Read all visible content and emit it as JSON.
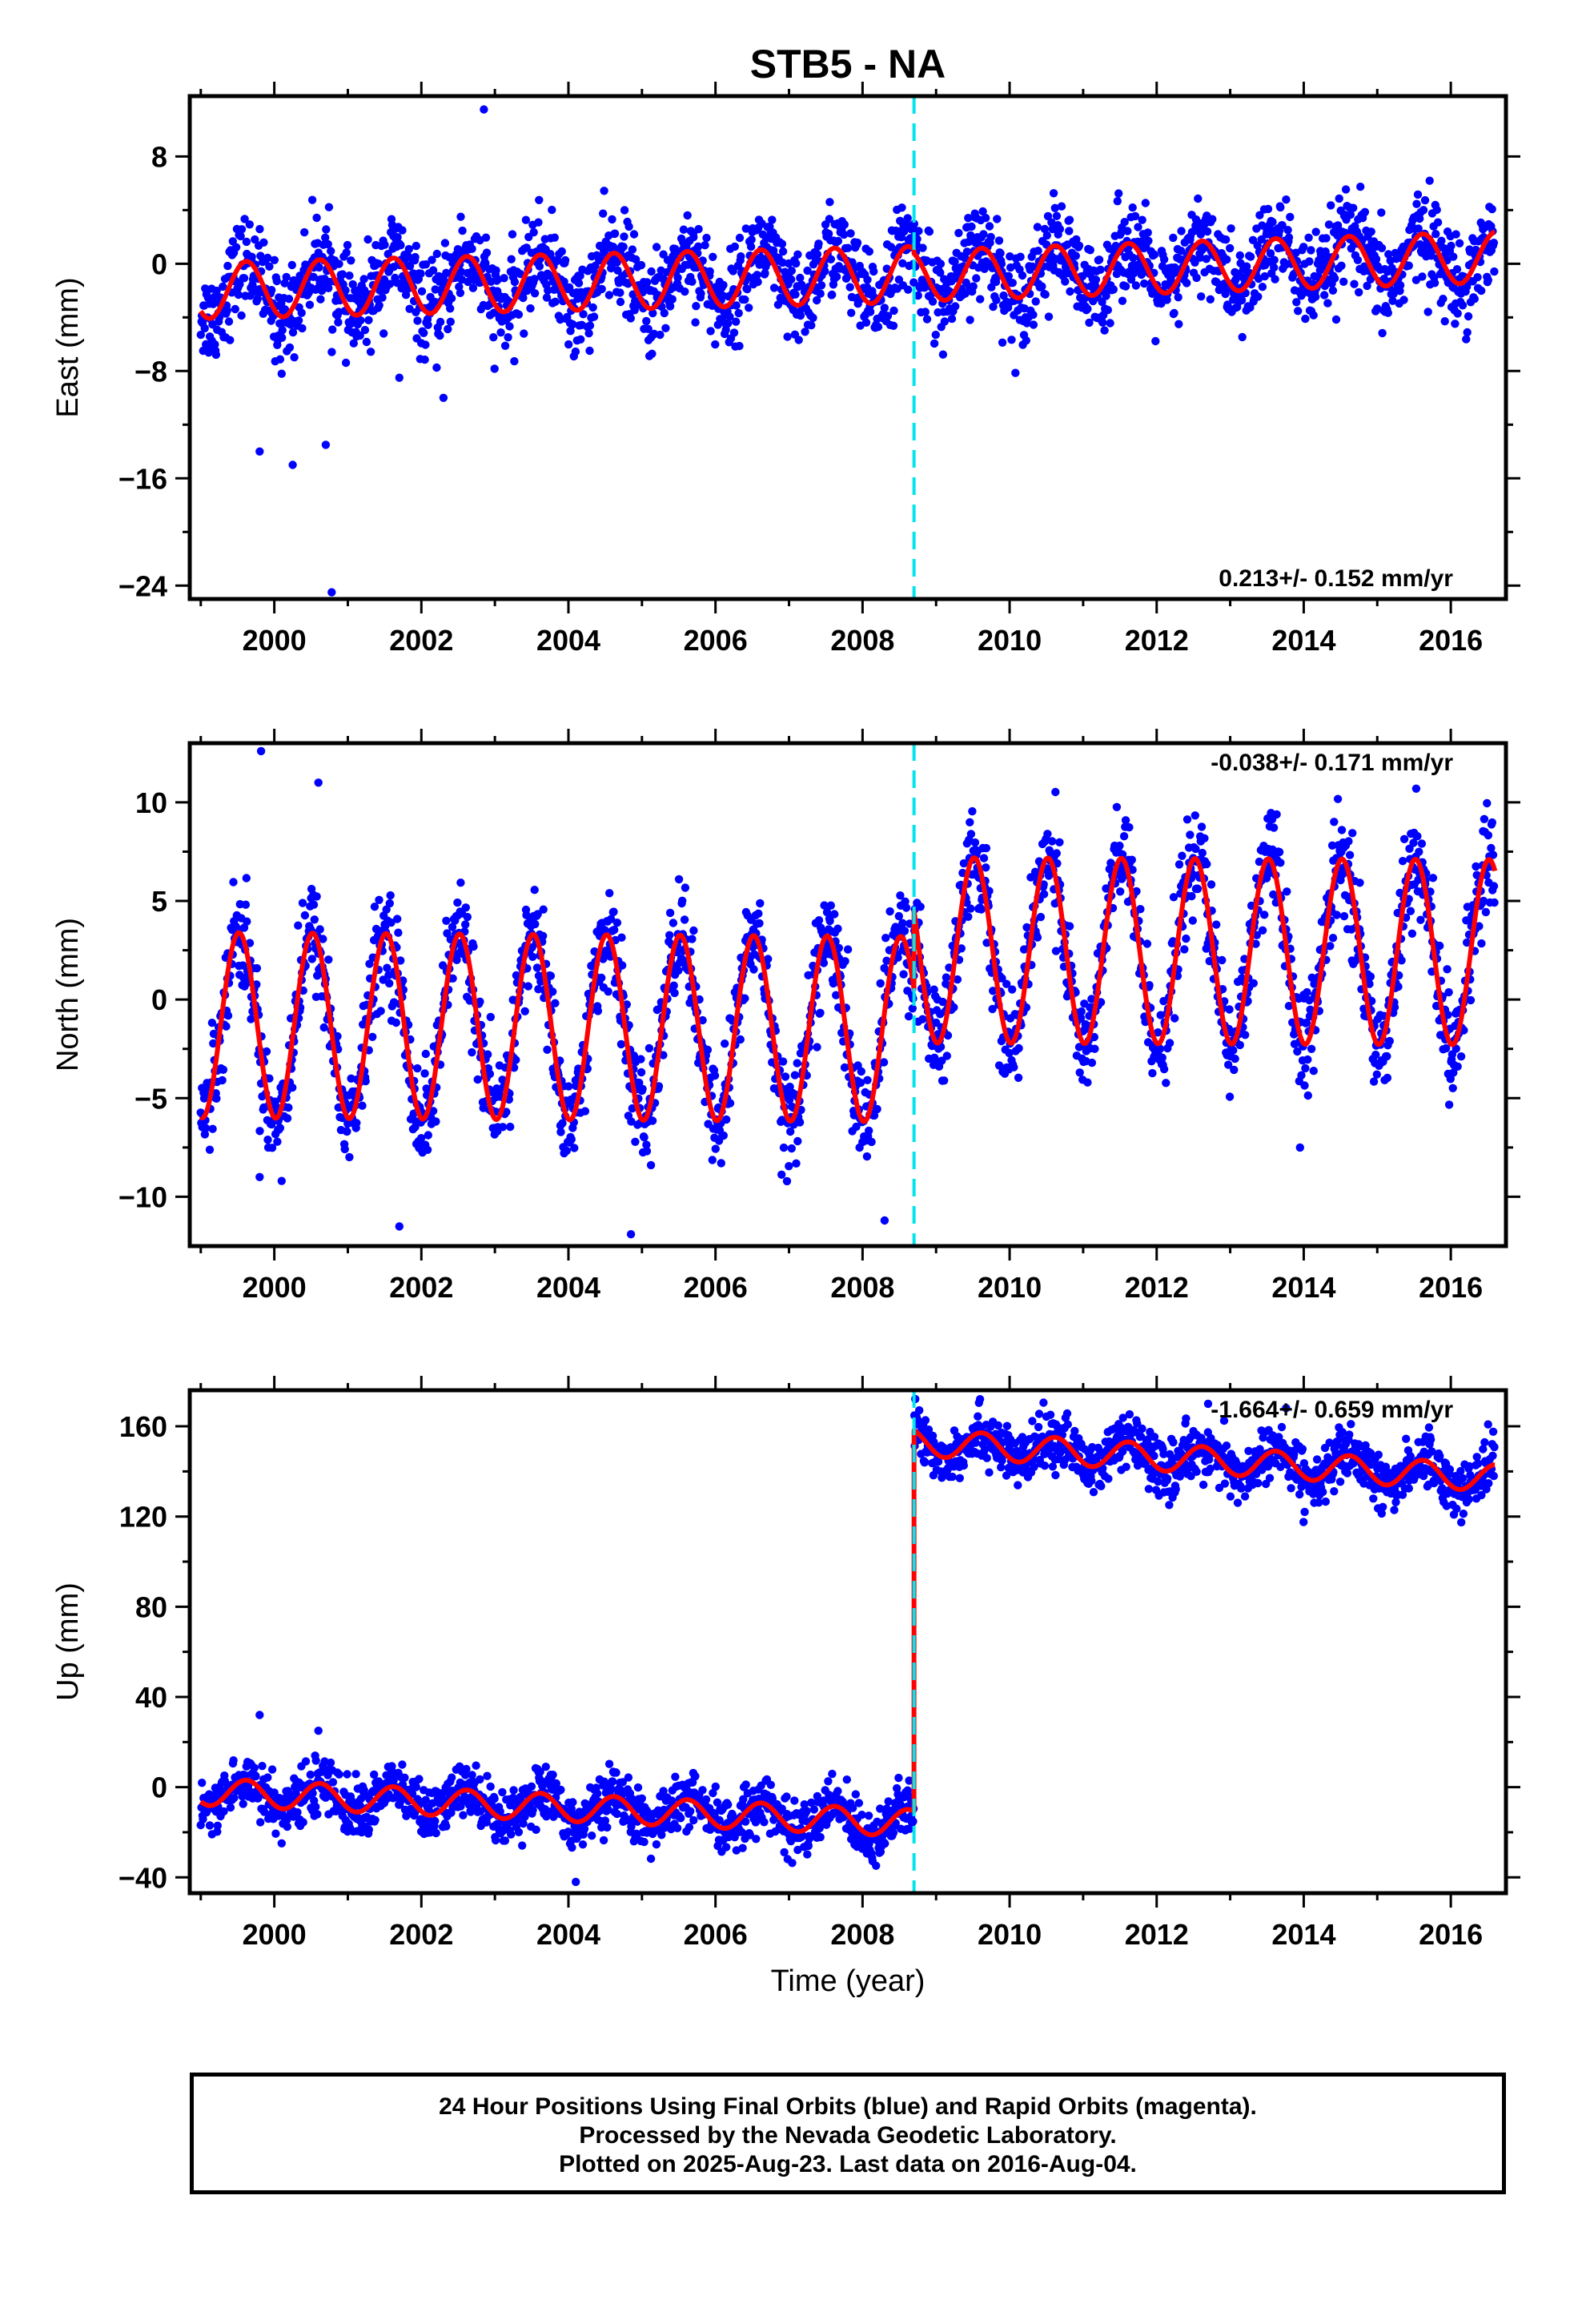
{
  "title": "STB5 - NA",
  "chart_data": [
    {
      "type": "scatter",
      "component": "East",
      "ylabel": "East (mm)",
      "xlim": [
        1998.85,
        2016.75
      ],
      "ylim": [
        -25,
        12.5
      ],
      "yticks": [
        8,
        0,
        -8,
        -16,
        -24
      ],
      "ytick_labels": [
        "8",
        "0",
        "−8",
        "−16",
        "−24"
      ],
      "xticks": [
        2000,
        2002,
        2004,
        2006,
        2008,
        2010,
        2012,
        2014,
        2016
      ],
      "xtick_labels": [
        "2000",
        "2002",
        "2004",
        "2006",
        "2008",
        "2010",
        "2012",
        "2014",
        "2016"
      ],
      "rate_text": "0.213+/- 0.152 mm/yr",
      "rate_position": "bottom-right",
      "offset_epoch": 2008.7,
      "trend": {
        "pre": {
          "start": -2.0,
          "end": -0.8,
          "annual_amplitude": 2.1,
          "peak_phase": 0.62
        },
        "post": {
          "start": -0.9,
          "end": 0.5,
          "annual_amplitude": 1.9,
          "peak_phase": 0.62
        }
      },
      "scatter_sigma": 1.7,
      "outliers": [
        [
          2002.85,
          11.5
        ],
        [
          1999.8,
          -14
        ],
        [
          2000.25,
          -15
        ],
        [
          2000.7,
          -13.5
        ],
        [
          2000.78,
          -24.5
        ],
        [
          2001.7,
          -8.5
        ],
        [
          2002.3,
          -10
        ],
        [
          2000.1,
          -8.2
        ]
      ]
    },
    {
      "type": "scatter",
      "component": "North",
      "ylabel": "North (mm)",
      "xlim": [
        1998.85,
        2016.75
      ],
      "ylim": [
        -12.5,
        13
      ],
      "yticks": [
        10,
        5,
        0,
        -5,
        -10
      ],
      "ytick_labels": [
        "10",
        "5",
        "0",
        "−5",
        "−10"
      ],
      "xticks": [
        2000,
        2002,
        2004,
        2006,
        2008,
        2010,
        2012,
        2014,
        2016
      ],
      "xtick_labels": [
        "2000",
        "2002",
        "2004",
        "2006",
        "2008",
        "2010",
        "2012",
        "2014",
        "2016"
      ],
      "rate_text": "-0.038+/- 0.171 mm/yr",
      "rate_position": "top-right",
      "offset_epoch": 2008.7,
      "trend": {
        "pre": {
          "start": -1.3,
          "end": -1.5,
          "annual_amplitude": 4.7,
          "peak_phase": 0.52
        },
        "post": {
          "start": 2.5,
          "end": 2.4,
          "annual_amplitude": 4.7,
          "peak_phase": 0.52
        }
      },
      "scatter_sigma": 1.3,
      "outliers": [
        [
          1999.82,
          12.6
        ],
        [
          2000.6,
          11
        ],
        [
          1999.8,
          -9
        ],
        [
          2000.1,
          -9.2
        ],
        [
          2001.7,
          -11.5
        ],
        [
          2004.85,
          -11.9
        ],
        [
          2008.3,
          -11.2
        ],
        [
          2013.95,
          -7.5
        ]
      ]
    },
    {
      "type": "scatter",
      "component": "Up",
      "ylabel": "Up (mm)",
      "xlabel": "Time (year)",
      "xlim": [
        1998.85,
        2016.75
      ],
      "ylim": [
        -47,
        176
      ],
      "yticks": [
        160,
        120,
        80,
        40,
        0,
        -40
      ],
      "ytick_labels": [
        "160",
        "120",
        "80",
        "40",
        "0",
        "−40"
      ],
      "xticks": [
        2000,
        2002,
        2004,
        2006,
        2008,
        2010,
        2012,
        2014,
        2016
      ],
      "xtick_labels": [
        "2000",
        "2002",
        "2004",
        "2006",
        "2008",
        "2010",
        "2012",
        "2014",
        "2016"
      ],
      "rate_text": "-1.664+/- 0.659 mm/yr",
      "rate_position": "top-right",
      "offset_epoch": 2008.7,
      "trend": {
        "pre": {
          "start": -2,
          "end": -16,
          "annual_amplitude": 6,
          "peak_phase": 0.62
        },
        "post": {
          "start": 153,
          "end": 137,
          "annual_amplitude": 6,
          "peak_phase": 0.62
        }
      },
      "scatter_sigma": 6,
      "outliers": [
        [
          1999.8,
          32
        ],
        [
          2000.6,
          25
        ],
        [
          2004.1,
          -42
        ],
        [
          2012.7,
          170
        ]
      ]
    }
  ],
  "colors": {
    "final_orbits": "#0000ff",
    "model": "#ff0000",
    "offset_line": "#00e5ee",
    "frame": "#000000"
  },
  "footer": {
    "line1": "24 Hour Positions Using Final Orbits (blue) and Rapid Orbits (magenta).",
    "line2": "Processed by the Nevada Geodetic Laboratory.",
    "line3": "Plotted on 2025-Aug-23. Last data on 2016-Aug-04."
  }
}
